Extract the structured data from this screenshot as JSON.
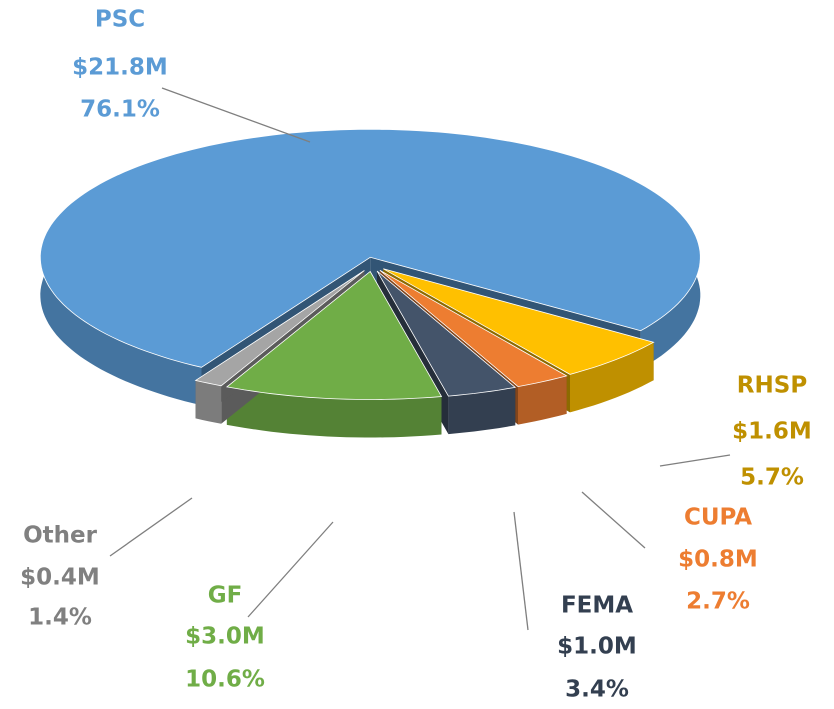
{
  "chart_data": {
    "type": "pie",
    "categories": [
      "PSC",
      "RHSP",
      "CUPA",
      "FEMA",
      "GF",
      "Other"
    ],
    "values": [
      76.1,
      5.7,
      2.7,
      3.4,
      10.6,
      1.4
    ],
    "value_labels": [
      "76.1%",
      "5.7%",
      "2.7%",
      "3.4%",
      "10.6%",
      "1.4%"
    ],
    "amounts": [
      21800000,
      1600000,
      800000,
      1000000,
      3000000,
      400000
    ],
    "amount_labels": [
      "$21.8M",
      "$1.6M",
      "$0.8M",
      "$1.0M",
      "$3.0M",
      "$0.4M"
    ],
    "colors": [
      "#5b9bd5",
      "#ffc000",
      "#ed7d31",
      "#44546a",
      "#70ad47",
      "#a5a5a5"
    ],
    "label_colors": [
      "#5b9bd5",
      "#bf9000",
      "#ed7d31",
      "#333f50",
      "#70ad47",
      "#808080"
    ]
  }
}
